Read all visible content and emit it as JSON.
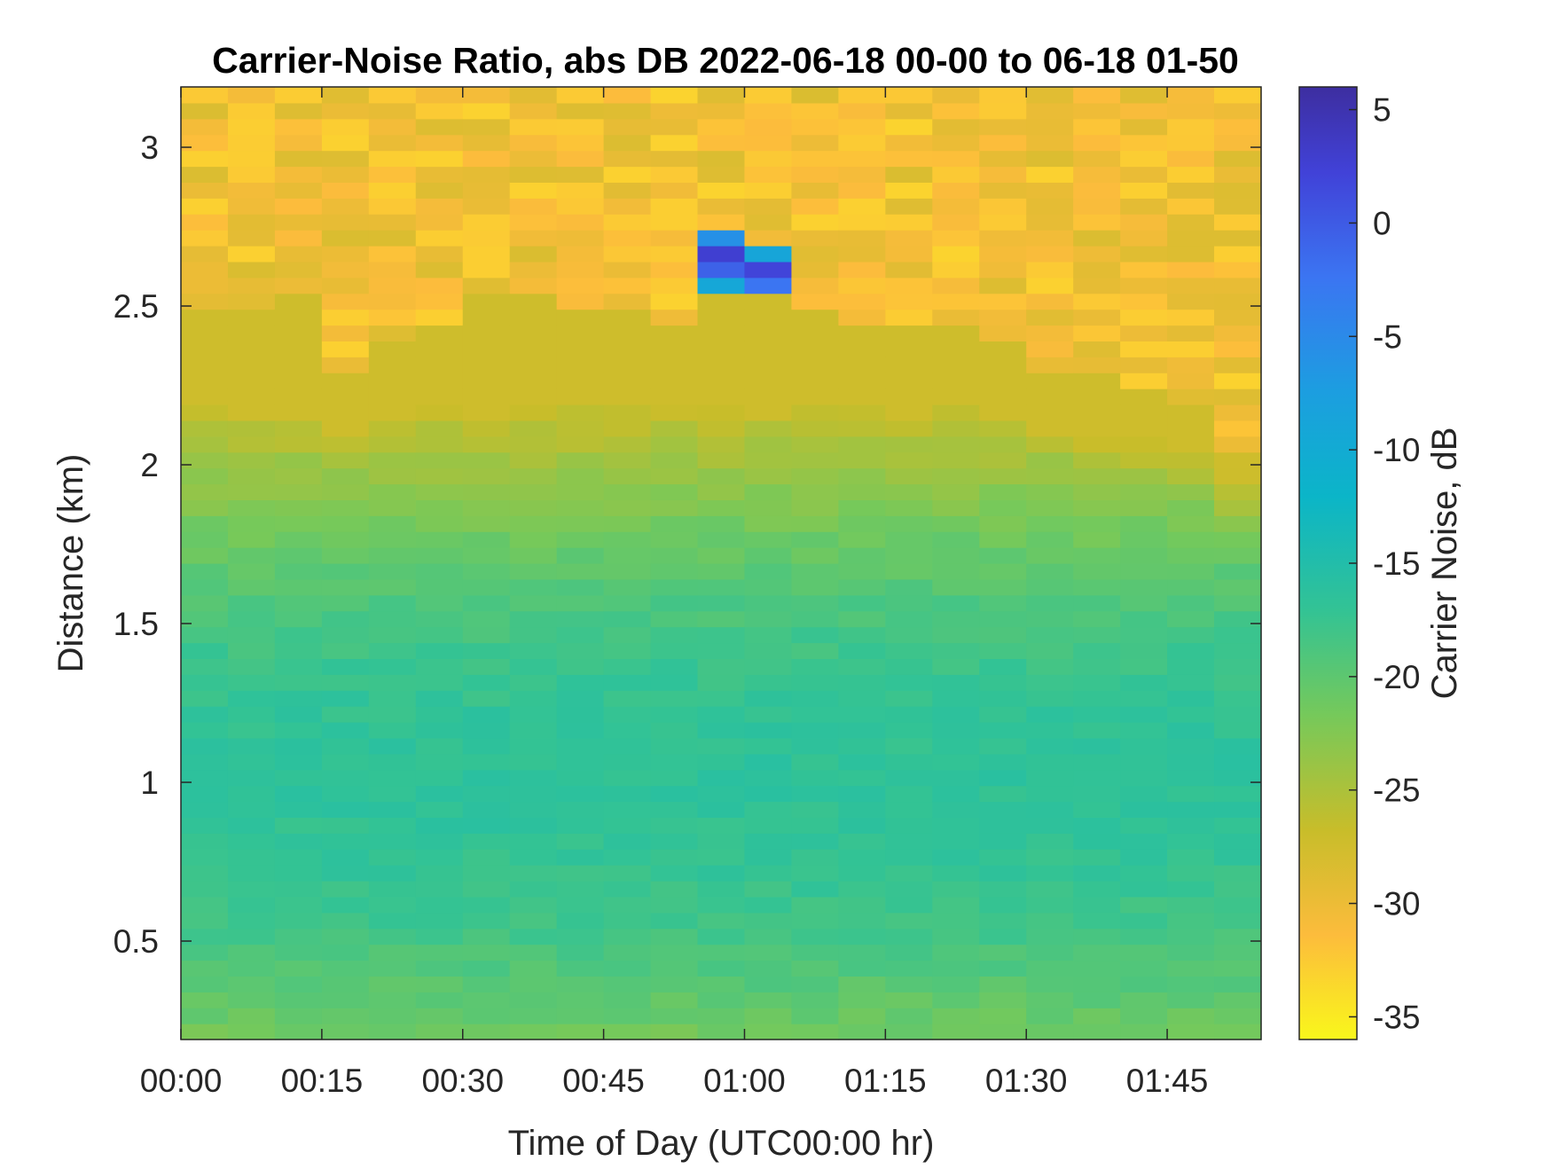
{
  "chart_data": {
    "type": "heatmap",
    "title": "Carrier-Noise Ratio, abs DB 2022-06-18 00-00 to 06-18 01-50",
    "xlabel": "Time of Day (UTC00:00 hr)",
    "ylabel": "Distance (km)",
    "colorbar_label": "Carrier Noise, dB",
    "colormap": "parula-reversed",
    "x_ticks": [
      "00:00",
      "00:15",
      "00:30",
      "00:45",
      "01:00",
      "01:15",
      "01:30",
      "01:45"
    ],
    "y_ticks": [
      "0.5",
      "1",
      "1.5",
      "2",
      "2.5",
      "3"
    ],
    "colorbar_ticks": [
      "5",
      "0",
      "-5",
      "-10",
      "-15",
      "-20",
      "-25",
      "-30",
      "-35"
    ],
    "xlim_minutes": [
      0,
      115
    ],
    "ylim_km": [
      0.19,
      3.19
    ],
    "clim_db": [
      -36,
      6
    ],
    "time_columns": [
      "00:00",
      "00:05",
      "00:10",
      "00:15",
      "00:20",
      "00:25",
      "00:30",
      "00:35",
      "00:40",
      "00:45",
      "00:50",
      "00:55",
      "01:00",
      "01:05",
      "01:10",
      "01:15",
      "01:20",
      "01:25",
      "01:30",
      "01:35",
      "01:40",
      "01:45",
      "01:50"
    ],
    "cloud_top_km": [
      2.48,
      2.5,
      2.53,
      2.3,
      2.4,
      2.45,
      2.55,
      2.53,
      2.5,
      2.47,
      2.44,
      2.6,
      2.55,
      2.5,
      2.45,
      2.44,
      2.45,
      2.4,
      2.3,
      2.3,
      2.25,
      2.2,
      2.05
    ],
    "anomaly": [
      {
        "time": "00:55",
        "from_km": 2.56,
        "to_km": 2.74,
        "min_db": 5
      },
      {
        "time": "01:00",
        "from_km": 2.53,
        "to_km": 2.67,
        "min_db": 5
      }
    ],
    "grid": false
  }
}
